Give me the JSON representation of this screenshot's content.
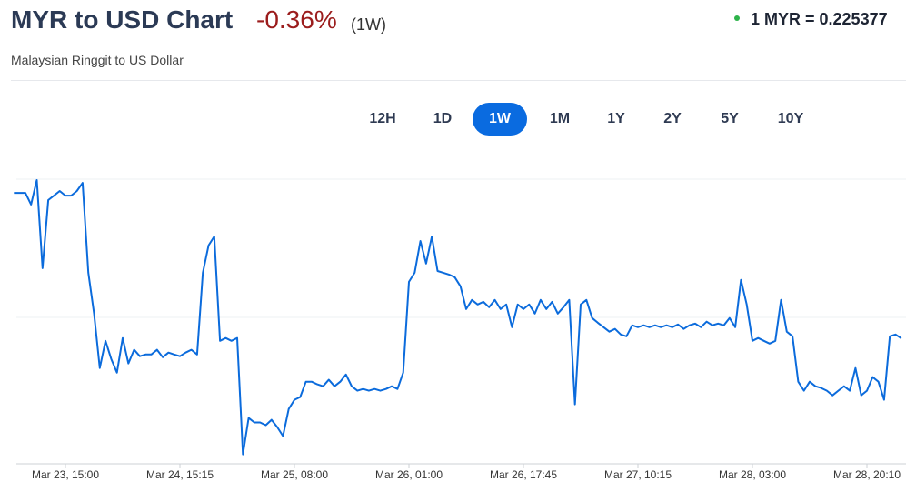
{
  "header": {
    "title": "MYR to USD Chart",
    "change": "-0.36%",
    "period": "(1W)",
    "subtitle": "Malaysian Ringgit to US Dollar",
    "rate": "1 MYR = 0.225377"
  },
  "ranges": {
    "buttons": [
      "12H",
      "1D",
      "1W",
      "1M",
      "1Y",
      "2Y",
      "5Y",
      "10Y"
    ],
    "selected": 2
  },
  "chart_data": {
    "type": "line",
    "color": "#0b6bdc",
    "categories": [
      null,
      null,
      null,
      null,
      null,
      null,
      null,
      null,
      null,
      "Mar 23, 15:00",
      null,
      null,
      null,
      null,
      null,
      null,
      null,
      null,
      null,
      null,
      null,
      null,
      null,
      null,
      null,
      null,
      null,
      null,
      null,
      "Mar 24, 15:15",
      null,
      null,
      null,
      null,
      null,
      null,
      null,
      null,
      null,
      null,
      null,
      null,
      null,
      null,
      null,
      null,
      null,
      null,
      null,
      "Mar 25, 08:00",
      null,
      null,
      null,
      null,
      null,
      null,
      null,
      null,
      null,
      null,
      null,
      null,
      null,
      null,
      null,
      null,
      null,
      null,
      null,
      "Mar 26, 01:00",
      null,
      null,
      null,
      null,
      null,
      null,
      null,
      null,
      null,
      null,
      null,
      null,
      null,
      null,
      null,
      null,
      null,
      null,
      null,
      "Mar 26, 17:45",
      null,
      null,
      null,
      null,
      null,
      null,
      null,
      null,
      null,
      null,
      null,
      null,
      null,
      null,
      null,
      null,
      null,
      null,
      null,
      "Mar 27, 10:15",
      null,
      null,
      null,
      null,
      null,
      null,
      null,
      null,
      null,
      null,
      null,
      null,
      null,
      null,
      null,
      null,
      null,
      null,
      null,
      "Mar 28, 03:00",
      null,
      null,
      null,
      null,
      null,
      null,
      null,
      null,
      null,
      null,
      null,
      null,
      null,
      null,
      null,
      null,
      null,
      null,
      null,
      "Mar 28, 20:10",
      null,
      null,
      null,
      null,
      null,
      null
    ],
    "values": [
      0.226221,
      0.226221,
      0.226221,
      0.226153,
      0.226295,
      0.225784,
      0.226179,
      0.226205,
      0.226232,
      0.226205,
      0.226205,
      0.226232,
      0.226279,
      0.225758,
      0.225521,
      0.225205,
      0.225363,
      0.225258,
      0.225179,
      0.225379,
      0.225232,
      0.225311,
      0.225274,
      0.225284,
      0.225284,
      0.225311,
      0.225268,
      0.225295,
      0.225284,
      0.225274,
      0.225295,
      0.225311,
      0.225284,
      0.225758,
      0.225916,
      0.225968,
      0.225363,
      0.225379,
      0.225363,
      0.225379,
      0.224705,
      0.224916,
      0.22489,
      0.22489,
      0.224874,
      0.224905,
      0.224863,
      0.224811,
      0.224968,
      0.225021,
      0.225037,
      0.225126,
      0.225126,
      0.225111,
      0.2251,
      0.225137,
      0.2251,
      0.225126,
      0.225168,
      0.2251,
      0.225074,
      0.225084,
      0.225074,
      0.225084,
      0.225074,
      0.225084,
      0.2251,
      0.225084,
      0.225179,
      0.225705,
      0.225758,
      0.225942,
      0.225811,
      0.225968,
      0.225768,
      0.225758,
      0.225747,
      0.225732,
      0.225679,
      0.225547,
      0.2256,
      0.225574,
      0.225589,
      0.225558,
      0.2256,
      0.225547,
      0.225574,
      0.225442,
      0.225574,
      0.225547,
      0.225574,
      0.225521,
      0.2256,
      0.225547,
      0.225589,
      0.225521,
      0.225558,
      0.2256,
      0.224995,
      0.225574,
      0.2256,
      0.225495,
      0.225468,
      0.225442,
      0.225416,
      0.225432,
      0.2254,
      0.225389,
      0.225453,
      0.225442,
      0.225453,
      0.225442,
      0.225453,
      0.225442,
      0.225453,
      0.225442,
      0.225458,
      0.225432,
      0.225453,
      0.225463,
      0.225442,
      0.225474,
      0.225453,
      0.225463,
      0.225453,
      0.225495,
      0.225442,
      0.225716,
      0.225574,
      0.225363,
      0.225379,
      0.225363,
      0.225347,
      0.225363,
      0.2256,
      0.225416,
      0.225389,
      0.225126,
      0.225074,
      0.225126,
      0.2251,
      0.22509,
      0.225074,
      0.225047,
      0.225074,
      0.2251,
      0.225074,
      0.225205,
      0.225047,
      0.225074,
      0.225153,
      0.225126,
      0.225021,
      0.225389,
      0.2254,
      0.225377
    ],
    "ylim": [
      0.22465,
      0.22639
    ]
  }
}
